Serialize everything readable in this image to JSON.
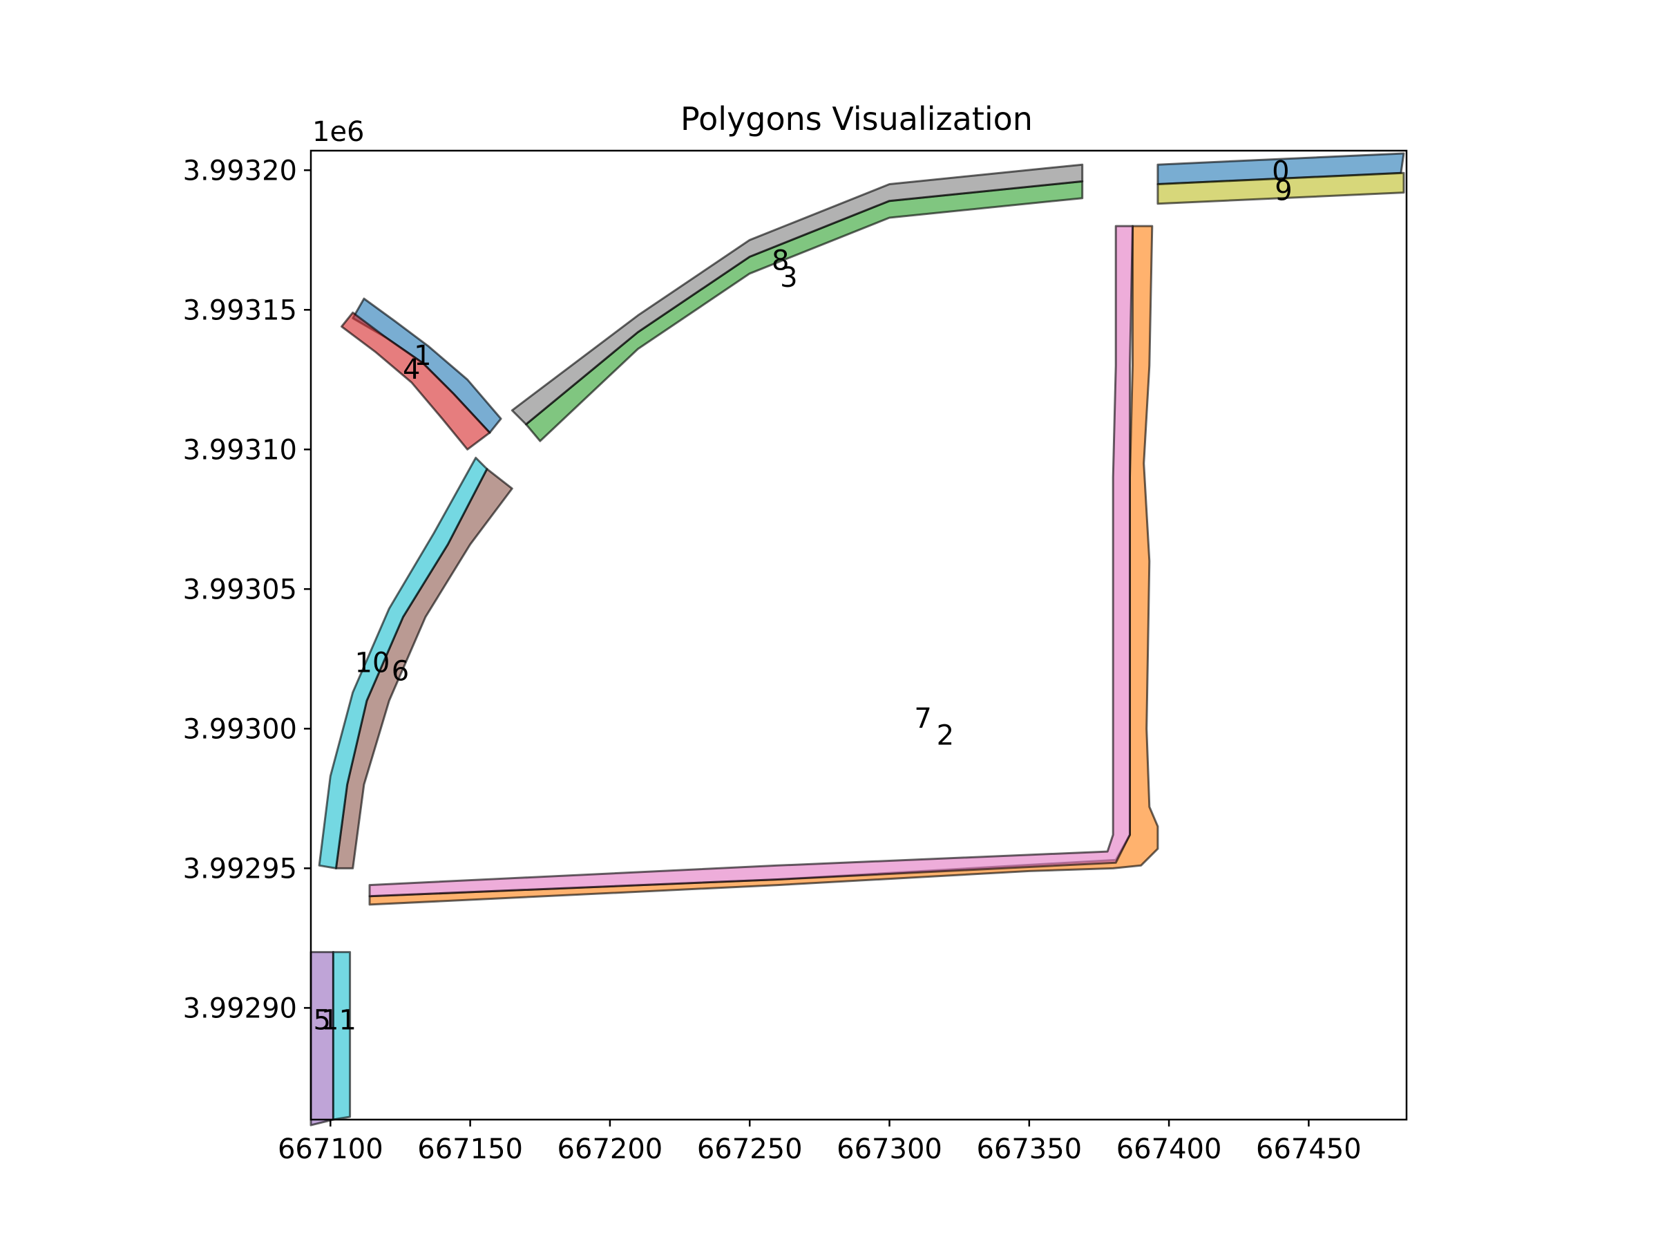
{
  "chart_data": {
    "type": "polygon-map",
    "title": "Polygons Visualization",
    "xlabel": "",
    "ylabel": "",
    "y_offset_label": "1e6",
    "xlim": [
      667093,
      667485
    ],
    "ylim": [
      3992860,
      3993207
    ],
    "x_ticks": [
      667100,
      667150,
      667200,
      667250,
      667300,
      667350,
      667400,
      667450
    ],
    "x_tick_labels": [
      "667100",
      "667150",
      "667200",
      "667250",
      "667300",
      "667350",
      "667400",
      "667450"
    ],
    "y_ticks": [
      3992900,
      3992950,
      3993000,
      3993050,
      3993100,
      3993150,
      3993200
    ],
    "y_tick_labels": [
      "3.99290",
      "3.99295",
      "3.99300",
      "3.99305",
      "3.99310",
      "3.99315",
      "3.99320"
    ],
    "grid": false,
    "legend": "none",
    "polygons": [
      {
        "label": "0",
        "color": "#1f77b4",
        "label_at": [
          667440,
          3993199
        ],
        "points": [
          [
            667396,
            3993195
          ],
          [
            667483,
            3993199
          ],
          [
            667484,
            3993206
          ],
          [
            667396,
            3993202
          ]
        ]
      },
      {
        "label": "1",
        "color": "#1f77b4",
        "label_at": [
          667133,
          3993133
        ],
        "points": [
          [
            667108,
            3993147
          ],
          [
            667120,
            3993140
          ],
          [
            667133,
            3993131
          ],
          [
            667144,
            3993120
          ],
          [
            667157,
            3993106
          ],
          [
            667161,
            3993111
          ],
          [
            667149,
            3993125
          ],
          [
            667135,
            3993137
          ],
          [
            667123,
            3993146
          ],
          [
            667112,
            3993154
          ]
        ]
      },
      {
        "label": "2",
        "color": "#ff7f0e",
        "label_at": [
          667320,
          3992997
        ],
        "points": [
          [
            667114,
            3992937
          ],
          [
            667260,
            3992944
          ],
          [
            667380,
            3992950
          ],
          [
            667384,
            3992954
          ],
          [
            667387,
            3992965
          ],
          [
            667387,
            3993000
          ],
          [
            667388,
            3993060
          ],
          [
            667390,
            3993090
          ],
          [
            667391,
            3993130
          ],
          [
            667392,
            3993180
          ],
          [
            667387,
            3993180
          ],
          [
            667386,
            3993130
          ],
          [
            667386,
            3993090
          ],
          [
            667386,
            3993000
          ],
          [
            667386,
            3992962
          ],
          [
            667381,
            3992952
          ],
          [
            667260,
            3992946
          ],
          [
            667114,
            3992940
          ]
        ],
        "outer": [
          [
            667114,
            3992937
          ],
          [
            667260,
            3992944
          ],
          [
            667350,
            3992949
          ],
          [
            667380,
            3992950
          ],
          [
            667390,
            3992951
          ],
          [
            667396,
            3992957
          ],
          [
            667396,
            3992965
          ],
          [
            667393,
            3992972
          ],
          [
            667392,
            3993000
          ],
          [
            667393,
            3993060
          ],
          [
            667391,
            3993095
          ],
          [
            667393,
            3993130
          ],
          [
            667394,
            3993180
          ],
          [
            667387,
            3993180
          ],
          [
            667387,
            3993130
          ],
          [
            667386,
            3993090
          ],
          [
            667386,
            3993000
          ],
          [
            667386,
            3992962
          ],
          [
            667381,
            3992953
          ],
          [
            667260,
            3992946
          ],
          [
            667114,
            3992940
          ]
        ]
      },
      {
        "label": "3",
        "color": "#2ca02c",
        "label_at": [
          667264,
          3993161
        ],
        "points": [
          [
            667175,
            3993103
          ],
          [
            667210,
            3993136
          ],
          [
            667250,
            3993163
          ],
          [
            667300,
            3993183
          ],
          [
            667369,
            3993190
          ],
          [
            667369,
            3993196
          ],
          [
            667300,
            3993189
          ],
          [
            667250,
            3993169
          ],
          [
            667210,
            3993142
          ],
          [
            667170,
            3993109
          ]
        ]
      },
      {
        "label": "4",
        "color": "#d62728",
        "label_at": [
          667129,
          3993128
        ],
        "points": [
          [
            667104,
            3993144
          ],
          [
            667116,
            3993135
          ],
          [
            667129,
            3993124
          ],
          [
            667140,
            3993111
          ],
          [
            667149,
            3993100
          ],
          [
            667157,
            3993106
          ],
          [
            667144,
            3993120
          ],
          [
            667133,
            3993131
          ],
          [
            667120,
            3993140
          ],
          [
            667108,
            3993149
          ]
        ]
      },
      {
        "label": "5",
        "color": "#9467bd",
        "label_at": [
          667097,
          3992895
        ],
        "points": [
          [
            667093,
            3992858
          ],
          [
            667101,
            3992860
          ],
          [
            667101,
            3992920
          ],
          [
            667093,
            3992920
          ]
        ]
      },
      {
        "label": "6",
        "color": "#8c564b",
        "label_at": [
          667125,
          3993020
        ],
        "points": [
          [
            667156,
            3993093
          ],
          [
            667165,
            3993086
          ],
          [
            667150,
            3993066
          ],
          [
            667134,
            3993040
          ],
          [
            667121,
            3993010
          ],
          [
            667112,
            3992980
          ],
          [
            667108,
            3992950
          ],
          [
            667102,
            3992950
          ],
          [
            667106,
            3992980
          ],
          [
            667113,
            3993010
          ],
          [
            667126,
            3993040
          ],
          [
            667142,
            3993066
          ]
        ]
      },
      {
        "label": "7",
        "color": "#e377c2",
        "label_at": [
          667312,
          3993003
        ],
        "points": [
          [
            667114,
            3992940
          ],
          [
            667260,
            3992946
          ],
          [
            667381,
            3992952
          ],
          [
            667386,
            3992962
          ],
          [
            667386,
            3993000
          ],
          [
            667386,
            3993090
          ],
          [
            667386,
            3993130
          ],
          [
            667387,
            3993180
          ],
          [
            667381,
            3993180
          ],
          [
            667381,
            3993130
          ],
          [
            667380,
            3993090
          ],
          [
            667380,
            3993000
          ],
          [
            667380,
            3992962
          ],
          [
            667378,
            3992956
          ],
          [
            667260,
            3992951
          ],
          [
            667114,
            3992944
          ]
        ]
      },
      {
        "label": "8",
        "color": "#7f7f7f",
        "label_at": [
          667261,
          3993167
        ],
        "points": [
          [
            667170,
            3993109
          ],
          [
            667210,
            3993142
          ],
          [
            667250,
            3993169
          ],
          [
            667300,
            3993189
          ],
          [
            667369,
            3993196
          ],
          [
            667369,
            3993202
          ],
          [
            667300,
            3993195
          ],
          [
            667250,
            3993175
          ],
          [
            667210,
            3993148
          ],
          [
            667165,
            3993114
          ]
        ]
      },
      {
        "label": "9",
        "color": "#bcbd22",
        "label_at": [
          667441,
          3993192
        ],
        "points": [
          [
            667396,
            3993188
          ],
          [
            667484,
            3993192
          ],
          [
            667484,
            3993199
          ],
          [
            667396,
            3993195
          ]
        ]
      },
      {
        "label": "10",
        "color": "#17becf",
        "label_at": [
          667115,
          3993023
        ],
        "points": [
          [
            667102,
            3992950
          ],
          [
            667106,
            3992980
          ],
          [
            667113,
            3993010
          ],
          [
            667126,
            3993040
          ],
          [
            667142,
            3993066
          ],
          [
            667156,
            3993093
          ],
          [
            667152,
            3993097
          ],
          [
            667137,
            3993070
          ],
          [
            667121,
            3993043
          ],
          [
            667108,
            3993013
          ],
          [
            667100,
            3992983
          ],
          [
            667096,
            3992951
          ]
        ]
      },
      {
        "label": "11",
        "color": "#17becf",
        "label_at": [
          667103,
          3992895
        ],
        "points": [
          [
            667101,
            3992860
          ],
          [
            667107,
            3992861
          ],
          [
            667107,
            3992920
          ],
          [
            667101,
            3992920
          ]
        ]
      }
    ]
  }
}
